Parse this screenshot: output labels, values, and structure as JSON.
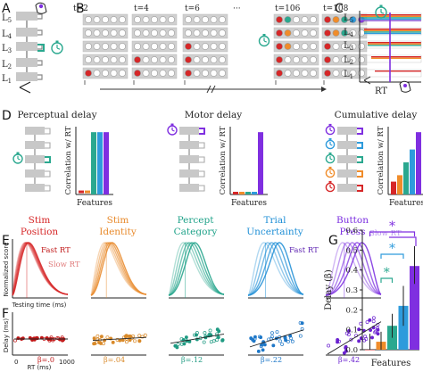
{
  "panel_letters": [
    "A",
    "B",
    "C",
    "D",
    "E",
    "F",
    "G"
  ],
  "layers": [
    "L5",
    "L4",
    "L3",
    "L2",
    "L1"
  ],
  "panel_b": {
    "time_labels": [
      "t=2",
      "t=4",
      "t=6",
      "···",
      "t=106",
      "t=108"
    ]
  },
  "panel_c": {
    "layers": [
      "L5",
      "L4",
      "L3",
      "L2",
      "L1"
    ],
    "xlabel": "RT"
  },
  "panel_d": {
    "titles": [
      "Perceptual delay",
      "Motor delay",
      "Cumulative delay"
    ],
    "ylabel": "Correlation w/ RT",
    "xlabel": "Features",
    "colors": [
      "#d62728",
      "#f08c2a",
      "#2aa88f",
      "#2e9bdc",
      "#7f2fe0"
    ]
  },
  "panel_e": {
    "features": [
      {
        "name": "Stim\nPosition",
        "l1": "Stim",
        "l2": "Position",
        "color": "#d62728"
      },
      {
        "name": "Stim\nIdentity",
        "l1": "Stim",
        "l2": "Identity",
        "color": "#e8892a"
      },
      {
        "name": "Percept\nCategory",
        "l1": "Percept",
        "l2": "Category",
        "color": "#21a38a"
      },
      {
        "name": "Trial\nUncertainty",
        "l1": "Trial",
        "l2": "Uncertainty",
        "color": "#1f8fd6"
      },
      {
        "name": "Button\nPress",
        "l1": "Button",
        "l2": "Press",
        "color": "#7b2ee0"
      }
    ],
    "ylabel": "Normalized score",
    "xlabel": "Testing time (ms)",
    "fast_label": "Fast RT",
    "slow_label": "Slow RT",
    "fast_label_2": "Fast RT",
    "slow_label_2": "Slow RT"
  },
  "panel_f": {
    "ylabel": "Delay (ms)",
    "xlabel": "RT (ms)",
    "x_ticks": [
      "0",
      "1000"
    ],
    "betas": [
      "β=.0",
      "β=.04",
      "β=.12",
      "β=.22",
      "β=.42"
    ]
  },
  "chart_data": {
    "type": "bar",
    "ylabel": "Delay (β)",
    "xlabel": "Features",
    "ylim": [
      0,
      0.6
    ],
    "y_ticks": [
      "0.0",
      "0.1",
      "0.2",
      "0.3",
      "0.4",
      "0.5",
      "0.6"
    ],
    "values": [
      0.0,
      0.04,
      0.12,
      0.22,
      0.42
    ],
    "errors": [
      [
        -0.1,
        0.08
      ],
      [
        0.0,
        0.09
      ],
      [
        0.06,
        0.18
      ],
      [
        0.12,
        0.32
      ],
      [
        0.33,
        0.52
      ]
    ],
    "colors": [
      "#d62728",
      "#f08c2a",
      "#2aa88f",
      "#2e9bdc",
      "#7f2fe0"
    ],
    "significance": "*"
  }
}
